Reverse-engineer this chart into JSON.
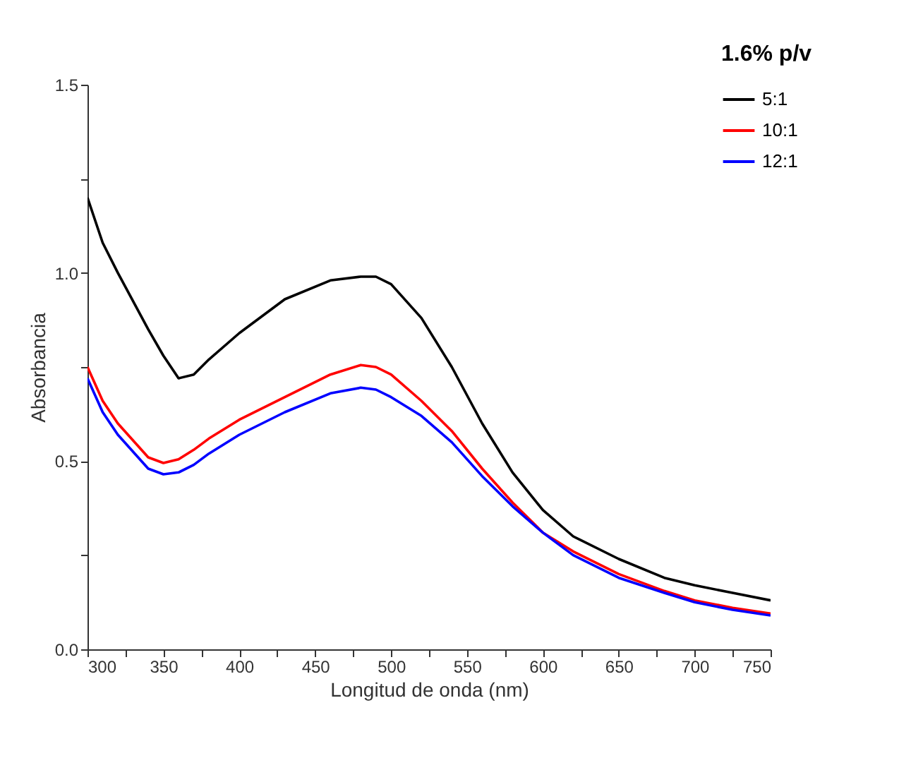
{
  "chart_data": {
    "type": "line",
    "legend_title": "1.6% p/v",
    "xlabel": "Longitud de onda (nm)",
    "ylabel": "Absorbancia",
    "x": [
      300,
      310,
      320,
      340,
      350,
      360,
      370,
      380,
      400,
      430,
      460,
      480,
      490,
      500,
      520,
      540,
      560,
      580,
      600,
      620,
      650,
      680,
      700,
      725,
      750
    ],
    "series": [
      {
        "name": "5:1",
        "color": "#000000",
        "values": [
          1.2,
          1.08,
          1.0,
          0.85,
          0.78,
          0.72,
          0.73,
          0.77,
          0.84,
          0.93,
          0.98,
          0.99,
          0.99,
          0.97,
          0.88,
          0.75,
          0.6,
          0.47,
          0.37,
          0.3,
          0.24,
          0.19,
          0.17,
          0.15,
          0.13
        ]
      },
      {
        "name": "10:1",
        "color": "#ff0000",
        "values": [
          0.75,
          0.66,
          0.6,
          0.51,
          0.495,
          0.505,
          0.53,
          0.56,
          0.61,
          0.67,
          0.73,
          0.755,
          0.75,
          0.73,
          0.66,
          0.58,
          0.48,
          0.39,
          0.31,
          0.26,
          0.2,
          0.155,
          0.13,
          0.11,
          0.095
        ]
      },
      {
        "name": "12:1",
        "color": "#0000ff",
        "values": [
          0.72,
          0.63,
          0.57,
          0.48,
          0.465,
          0.47,
          0.49,
          0.52,
          0.57,
          0.63,
          0.68,
          0.695,
          0.69,
          0.67,
          0.62,
          0.55,
          0.46,
          0.38,
          0.31,
          0.25,
          0.19,
          0.15,
          0.125,
          0.105,
          0.09
        ]
      }
    ],
    "xlim": [
      300,
      750
    ],
    "xticks": [
      300,
      {
        "value": 325,
        "label": null
      },
      350,
      {
        "value": 375,
        "label": null
      },
      400,
      {
        "value": 425,
        "label": null
      },
      450,
      {
        "value": 475,
        "label": null
      },
      500,
      {
        "value": 525,
        "label": null
      },
      550,
      {
        "value": 575,
        "label": null
      },
      600,
      {
        "value": 625,
        "label": null
      },
      650,
      {
        "value": 675,
        "label": null
      },
      700,
      {
        "value": 725,
        "label": null
      },
      750
    ],
    "ylim": [
      0,
      1.5
    ],
    "yticks": [
      {
        "value": 0,
        "label": "0.0"
      },
      {
        "value": 0.25,
        "label": null
      },
      {
        "value": 0.5,
        "label": "0.5"
      },
      {
        "value": 0.75,
        "label": null
      },
      {
        "value": 1,
        "label": "1.0"
      },
      {
        "value": 1.25,
        "label": null
      },
      {
        "value": 1.5,
        "label": "1.5"
      }
    ],
    "grid": false,
    "legend": "top right",
    "marker": "none",
    "line_style": "solid"
  }
}
